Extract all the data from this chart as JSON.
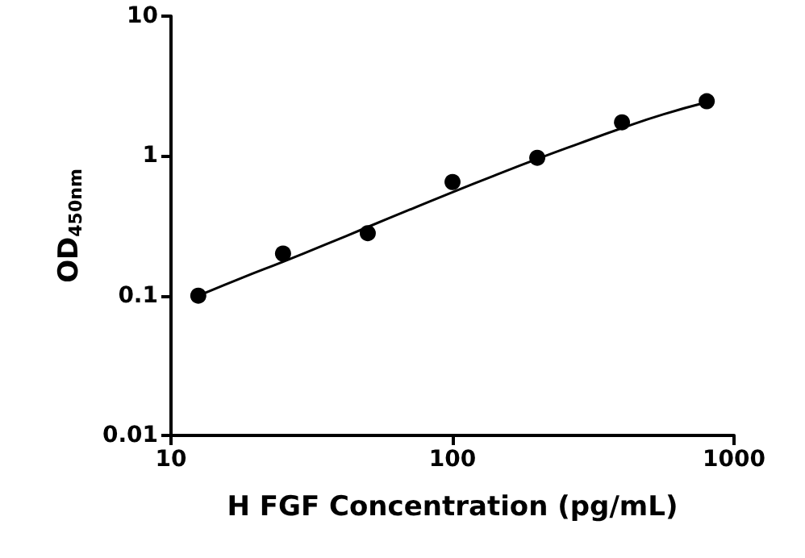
{
  "chart_data": {
    "type": "scatter",
    "xlabel": "H FGF Concentration (pg/mL)",
    "ylabel": "OD$_{450nm}$",
    "log": "xy",
    "xlim": [
      10,
      1000
    ],
    "xticks": [
      10,
      100,
      1000
    ],
    "ylim": [
      0.01,
      10
    ],
    "yticks": [
      0.01,
      0.1,
      1,
      10
    ],
    "grid": false,
    "series": [
      {
        "color": "#000000",
        "marker": "circle",
        "x": [
          12.5,
          25,
          50,
          100,
          200,
          400,
          800
        ],
        "values": [
          0.1,
          0.2,
          0.28,
          0.65,
          0.97,
          1.74,
          2.46
        ]
      },
      {
        "type": "line",
        "color": "#000000",
        "marker": "none",
        "line_style": "solid",
        "x": [
          12.5,
          18,
          25,
          35,
          50,
          70,
          100,
          140,
          200,
          280,
          400,
          560,
          800
        ],
        "values": [
          0.1,
          0.135,
          0.175,
          0.23,
          0.31,
          0.41,
          0.55,
          0.72,
          0.95,
          1.22,
          1.58,
          1.98,
          2.42
        ]
      }
    ]
  }
}
